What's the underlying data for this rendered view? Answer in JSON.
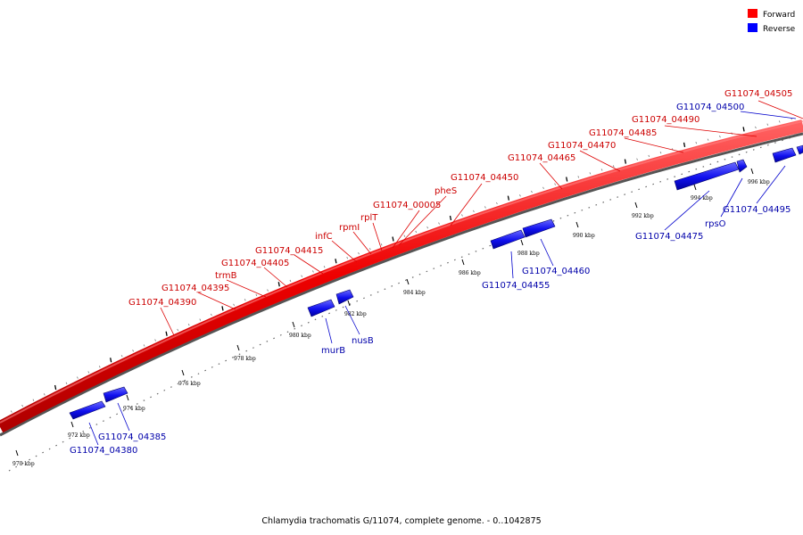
{
  "caption": "Chlamydia trachomatis G/11074, complete genome. - 0..1042875",
  "legend": [
    {
      "label": "Forward",
      "color": "#ff0000"
    },
    {
      "label": "Reverse",
      "color": "#0000ff"
    }
  ],
  "colors": {
    "forward": "#ee1111",
    "reverse": "#1111ee",
    "forward_label": "#cc0000",
    "reverse_label": "#0000aa"
  },
  "ticks": [
    "970 kbp",
    "972 kbp",
    "974 kbp",
    "976 kbp",
    "978 kbp",
    "980 kbp",
    "982 kbp",
    "984 kbp",
    "986 kbp",
    "988 kbp",
    "990 kbp",
    "992 kbp",
    "994 kbp",
    "996 kbp"
  ],
  "forward_labels": [
    "G11074_04390",
    "G11074_04395",
    "trmB",
    "G11074_04405",
    "G11074_04415",
    "infC",
    "rpmI",
    "rplT",
    "G11074_00005",
    "pheS",
    "G11074_04450",
    "G11074_04465",
    "G11074_04470",
    "G11074_04485",
    "G11074_04490",
    "G11074_04505"
  ],
  "reverse_labels": [
    "G11074_04380",
    "G11074_04385",
    "murB",
    "nusB",
    "G11074_04455",
    "G11074_04460",
    "G11074_04475",
    "rpsO",
    "G11074_04495",
    "G11074_04500"
  ]
}
